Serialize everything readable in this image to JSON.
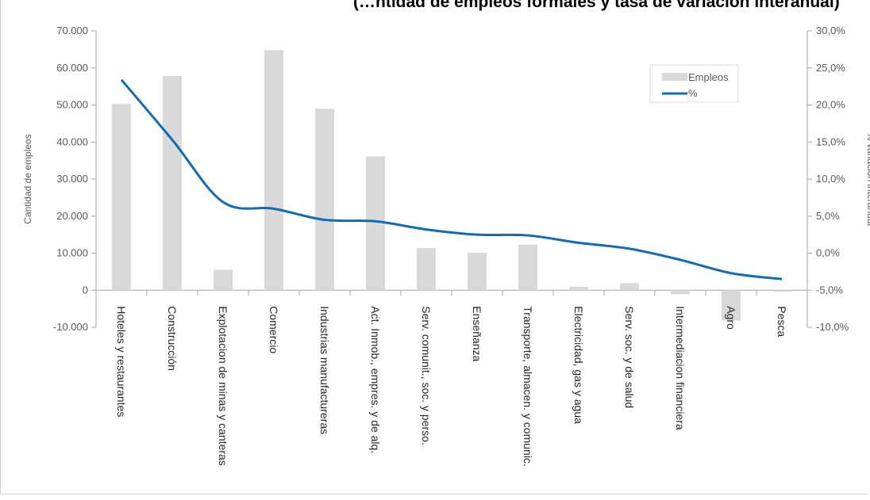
{
  "chart_data": {
    "type": "bar",
    "title": "(…ntidad de empleos formales y tasa de variación interanual)",
    "title_visible": "(… … … … … … y … … … … …)",
    "categories": [
      "Hoteles y restaurantes",
      "Construcción",
      "Explotacion de minas y canteras",
      "Comercio",
      "Industrias manufactureras",
      "Act. Inmob., empres. y de alq.",
      "Serv. comunit., soc. y perso.",
      "Enseñanza",
      "Transporte, almacen. y comunic.",
      "Electricidad, gas y agua",
      "Serv. soc. y de salud",
      "Intermediacion financiera",
      "Agro",
      "Pesca"
    ],
    "series": [
      {
        "name": "Empleos",
        "type": "bar",
        "axis": "left",
        "color": "#d9d9d9",
        "values": [
          50300,
          57800,
          5500,
          64800,
          49000,
          36100,
          11400,
          10100,
          12300,
          900,
          1900,
          -1100,
          -8200,
          -400
        ]
      },
      {
        "name": "%",
        "type": "line",
        "axis": "right",
        "color": "#0f6cb6",
        "smooth": true,
        "values": [
          23.4,
          15.3,
          6.9,
          6.0,
          4.5,
          4.3,
          3.2,
          2.5,
          2.4,
          1.4,
          0.6,
          -0.9,
          -2.7,
          -3.5
        ]
      }
    ],
    "ylabel": "Cantidad de empleos",
    "y2label": "% variación interanual",
    "ylim": [
      -10000,
      70000
    ],
    "y2lim": [
      -10,
      30
    ],
    "yticks": [
      "-10.000",
      "0",
      "10.000",
      "20.000",
      "30.000",
      "40.000",
      "50.000",
      "60.000",
      "70.000"
    ],
    "y2ticks": [
      "-10,0%",
      "-5,0%",
      "0,0%",
      "5,0%",
      "10,0%",
      "15,0%",
      "20,0%",
      "25,0%",
      "30,0%"
    ],
    "grid": false,
    "legend": "top-right"
  }
}
